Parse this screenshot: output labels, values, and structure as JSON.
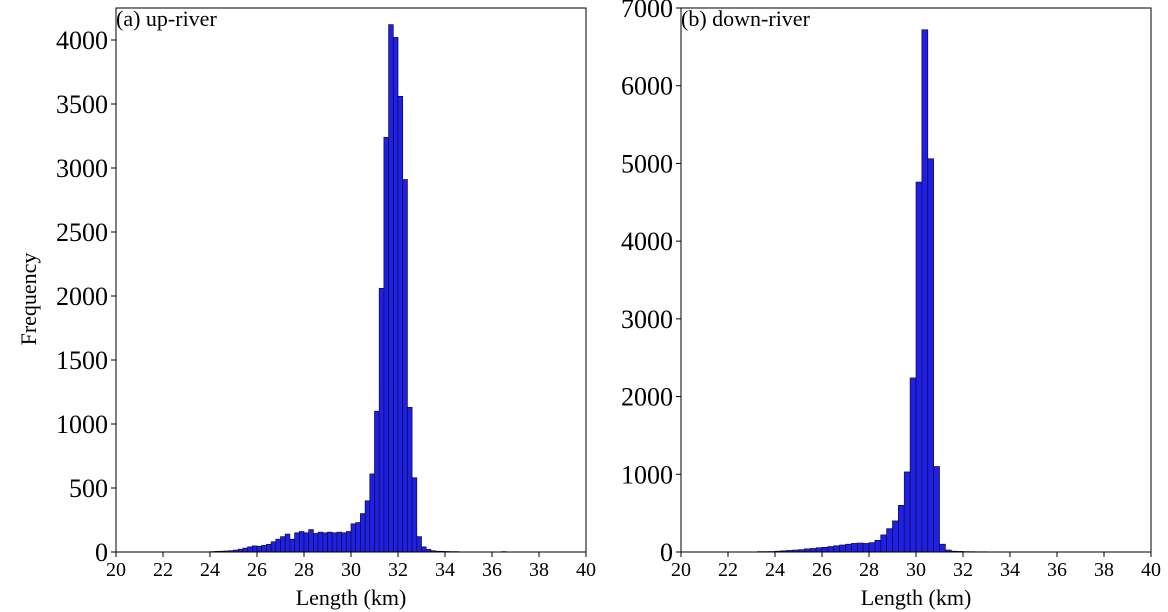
{
  "figure": {
    "bar_color": "#1f1fe6",
    "edge_color": "#0d0d33"
  },
  "chart_data": [
    {
      "type": "bar",
      "title": "(a) up-river",
      "xlabel": "Length (km)",
      "ylabel": "Frequency",
      "xlim": [
        20,
        40
      ],
      "ylim": [
        0,
        4250
      ],
      "xticks": [
        "20",
        "22",
        "24",
        "26",
        "28",
        "30",
        "32",
        "34",
        "36",
        "38",
        "40"
      ],
      "yticks": [
        "0",
        "500",
        "1000",
        "1500",
        "2000",
        "2500",
        "3000",
        "3500",
        "4000"
      ],
      "bin_width": 0.2,
      "bins": [
        [
          24.0,
          3
        ],
        [
          24.2,
          5
        ],
        [
          24.4,
          6
        ],
        [
          24.6,
          8
        ],
        [
          24.8,
          10
        ],
        [
          25.0,
          15
        ],
        [
          25.2,
          22
        ],
        [
          25.4,
          30
        ],
        [
          25.6,
          40
        ],
        [
          25.8,
          48
        ],
        [
          26.0,
          45
        ],
        [
          26.2,
          52
        ],
        [
          26.4,
          60
        ],
        [
          26.6,
          80
        ],
        [
          26.8,
          100
        ],
        [
          27.0,
          120
        ],
        [
          27.2,
          140
        ],
        [
          27.4,
          100
        ],
        [
          27.6,
          150
        ],
        [
          27.8,
          160
        ],
        [
          28.0,
          150
        ],
        [
          28.2,
          175
        ],
        [
          28.4,
          145
        ],
        [
          28.6,
          155
        ],
        [
          28.8,
          150
        ],
        [
          29.0,
          155
        ],
        [
          29.2,
          150
        ],
        [
          29.4,
          155
        ],
        [
          29.6,
          150
        ],
        [
          29.8,
          160
        ],
        [
          30.0,
          220
        ],
        [
          30.2,
          230
        ],
        [
          30.4,
          300
        ],
        [
          30.6,
          400
        ],
        [
          30.8,
          610
        ],
        [
          31.0,
          1100
        ],
        [
          31.2,
          2060
        ],
        [
          31.4,
          3240
        ],
        [
          31.6,
          4120
        ],
        [
          31.8,
          4020
        ],
        [
          32.0,
          3560
        ],
        [
          32.2,
          2910
        ],
        [
          32.4,
          1130
        ],
        [
          32.6,
          580
        ],
        [
          32.8,
          120
        ],
        [
          33.0,
          40
        ],
        [
          33.2,
          20
        ],
        [
          33.4,
          10
        ],
        [
          33.6,
          6
        ],
        [
          33.8,
          5
        ],
        [
          34.0,
          4
        ],
        [
          34.2,
          3
        ],
        [
          34.4,
          3
        ],
        [
          36.4,
          3
        ]
      ]
    },
    {
      "type": "bar",
      "title": "(b) down-river",
      "xlabel": "Length (km)",
      "ylabel": "",
      "xlim": [
        20,
        40
      ],
      "ylim": [
        0,
        7000
      ],
      "xticks": [
        "20",
        "22",
        "24",
        "26",
        "28",
        "30",
        "32",
        "34",
        "36",
        "38",
        "40"
      ],
      "yticks": [
        "0",
        "1000",
        "2000",
        "3000",
        "4000",
        "5000",
        "6000",
        "7000"
      ],
      "bin_width": 0.25,
      "bins": [
        [
          23.25,
          5
        ],
        [
          23.5,
          5
        ],
        [
          23.75,
          6
        ],
        [
          24.0,
          10
        ],
        [
          24.25,
          15
        ],
        [
          24.5,
          20
        ],
        [
          24.75,
          25
        ],
        [
          25.0,
          30
        ],
        [
          25.25,
          40
        ],
        [
          25.5,
          45
        ],
        [
          25.75,
          55
        ],
        [
          26.0,
          60
        ],
        [
          26.25,
          70
        ],
        [
          26.5,
          80
        ],
        [
          26.75,
          90
        ],
        [
          27.0,
          100
        ],
        [
          27.25,
          110
        ],
        [
          27.5,
          115
        ],
        [
          27.75,
          110
        ],
        [
          28.0,
          120
        ],
        [
          28.25,
          150
        ],
        [
          28.5,
          220
        ],
        [
          28.75,
          300
        ],
        [
          29.0,
          400
        ],
        [
          29.25,
          600
        ],
        [
          29.5,
          1030
        ],
        [
          29.75,
          2240
        ],
        [
          30.0,
          4760
        ],
        [
          30.25,
          6720
        ],
        [
          30.5,
          5060
        ],
        [
          30.75,
          1100
        ],
        [
          31.0,
          100
        ],
        [
          31.25,
          25
        ],
        [
          31.5,
          10
        ],
        [
          31.75,
          8
        ],
        [
          32.0,
          5
        ],
        [
          32.25,
          4
        ],
        [
          32.5,
          3
        ],
        [
          32.75,
          3
        ]
      ]
    }
  ]
}
